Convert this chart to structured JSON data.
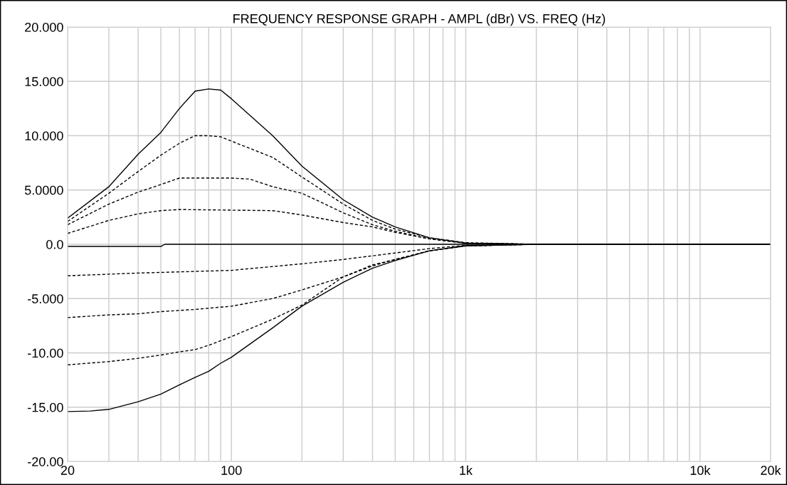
{
  "chart_data": {
    "type": "line",
    "title": "FREQUENCY RESPONSE GRAPH - AMPL (dBr) VS. FREQ (Hz)",
    "log": "x",
    "grid": true,
    "marker": "none",
    "xlim": [
      20,
      20000
    ],
    "ylim": [
      -20,
      20
    ],
    "xticks": [
      {
        "value": 20,
        "label": "20"
      },
      {
        "value": 30,
        "label": null
      },
      {
        "value": 40,
        "label": null
      },
      {
        "value": 50,
        "label": null
      },
      {
        "value": 60,
        "label": null
      },
      {
        "value": 70,
        "label": null
      },
      {
        "value": 80,
        "label": null
      },
      {
        "value": 90,
        "label": null
      },
      {
        "value": 100,
        "label": "100"
      },
      {
        "value": 200,
        "label": null
      },
      {
        "value": 300,
        "label": null
      },
      {
        "value": 400,
        "label": null
      },
      {
        "value": 500,
        "label": null
      },
      {
        "value": 600,
        "label": null
      },
      {
        "value": 700,
        "label": null
      },
      {
        "value": 800,
        "label": null
      },
      {
        "value": 900,
        "label": null
      },
      {
        "value": 1000,
        "label": "1k"
      },
      {
        "value": 2000,
        "label": null
      },
      {
        "value": 3000,
        "label": null
      },
      {
        "value": 4000,
        "label": null
      },
      {
        "value": 5000,
        "label": null
      },
      {
        "value": 6000,
        "label": null
      },
      {
        "value": 7000,
        "label": null
      },
      {
        "value": 8000,
        "label": null
      },
      {
        "value": 9000,
        "label": null
      },
      {
        "value": 10000,
        "label": "10k"
      },
      {
        "value": 20000,
        "label": "20k"
      }
    ],
    "yticks": [
      {
        "value": 20,
        "label": "20.000"
      },
      {
        "value": 15,
        "label": "15.000"
      },
      {
        "value": 10,
        "label": "10.000"
      },
      {
        "value": 5,
        "label": "5.0000"
      },
      {
        "value": 0,
        "label": "0.0"
      },
      {
        "value": -5,
        "label": "-5.000"
      },
      {
        "value": -10,
        "label": "-10.00"
      },
      {
        "value": -15,
        "label": "-15.00"
      },
      {
        "value": -20,
        "label": "-20.00"
      }
    ],
    "series": [
      {
        "color": "#000000",
        "line_style": "solid",
        "x": [
          20,
          30,
          40,
          50,
          60,
          70,
          80,
          90,
          100,
          150,
          200,
          300,
          400,
          500,
          700,
          1000,
          2000,
          20000
        ],
        "values": [
          2.4,
          5.3,
          8.3,
          10.3,
          12.5,
          14.1,
          14.3,
          14.2,
          13.4,
          10.0,
          7.2,
          4.1,
          2.5,
          1.6,
          0.6,
          0.1,
          0,
          0
        ]
      },
      {
        "color": "#000000",
        "line_style": "dashed",
        "x": [
          20,
          30,
          40,
          50,
          60,
          70,
          80,
          90,
          100,
          150,
          200,
          300,
          400,
          500,
          700,
          1000,
          2000,
          20000
        ],
        "values": [
          2.1,
          4.7,
          6.7,
          8.2,
          9.3,
          10.0,
          10.0,
          9.9,
          9.5,
          8.0,
          6.2,
          3.7,
          2.2,
          1.4,
          0.6,
          0.15,
          0,
          0
        ]
      },
      {
        "color": "#000000",
        "line_style": "dashed",
        "x": [
          20,
          30,
          40,
          50,
          60,
          70,
          100,
          120,
          150,
          200,
          300,
          400,
          500,
          700,
          1000,
          2000,
          20000
        ],
        "values": [
          1.8,
          3.7,
          4.8,
          5.5,
          6.1,
          6.1,
          6.1,
          6.0,
          5.3,
          4.7,
          2.9,
          1.8,
          1.2,
          0.5,
          0.1,
          0,
          0
        ]
      },
      {
        "color": "#000000",
        "line_style": "dashed",
        "x": [
          20,
          30,
          40,
          50,
          60,
          150,
          200,
          300,
          400,
          500,
          700,
          1000,
          2000,
          20000
        ],
        "values": [
          1.0,
          2.2,
          2.8,
          3.1,
          3.2,
          3.1,
          2.7,
          2.0,
          1.6,
          1.1,
          0.5,
          0.1,
          0,
          0
        ]
      },
      {
        "color": "#000000",
        "line_style": "solid",
        "x": [
          20,
          50,
          52,
          20000
        ],
        "values": [
          -0.2,
          -0.2,
          0,
          0
        ]
      },
      {
        "color": "#000000",
        "line_style": "dashed",
        "x": [
          20,
          40,
          100,
          200,
          300,
          500,
          700,
          1000,
          2000,
          20000
        ],
        "values": [
          -2.9,
          -2.65,
          -2.4,
          -1.8,
          -1.4,
          -0.8,
          -0.4,
          -0.1,
          0,
          0
        ]
      },
      {
        "color": "#000000",
        "line_style": "dashed",
        "x": [
          20,
          30,
          40,
          50,
          70,
          100,
          150,
          200,
          300,
          400,
          500,
          700,
          1000,
          2000,
          20000
        ],
        "values": [
          -6.75,
          -6.5,
          -6.4,
          -6.2,
          -6.0,
          -5.7,
          -5.0,
          -4.2,
          -3.0,
          -1.9,
          -1.4,
          -0.6,
          -0.15,
          0,
          0
        ]
      },
      {
        "color": "#000000",
        "line_style": "dashed",
        "x": [
          20,
          30,
          40,
          50,
          60,
          70,
          80,
          100,
          150,
          200,
          300,
          400,
          500,
          700,
          1000,
          2000,
          20000
        ],
        "values": [
          -11.1,
          -10.8,
          -10.5,
          -10.2,
          -9.9,
          -9.7,
          -9.3,
          -8.5,
          -6.9,
          -5.6,
          -3.0,
          -2.0,
          -1.4,
          -0.6,
          -0.15,
          0,
          0
        ]
      },
      {
        "color": "#000000",
        "line_style": "solid",
        "x": [
          20,
          25,
          30,
          40,
          50,
          60,
          70,
          80,
          90,
          100,
          150,
          200,
          300,
          400,
          500,
          700,
          1000,
          2000,
          20000
        ],
        "values": [
          -15.4,
          -15.35,
          -15.2,
          -14.5,
          -13.8,
          -12.95,
          -12.25,
          -11.7,
          -10.95,
          -10.4,
          -7.7,
          -5.7,
          -3.5,
          -2.2,
          -1.5,
          -0.6,
          -0.15,
          0,
          0
        ]
      }
    ]
  }
}
